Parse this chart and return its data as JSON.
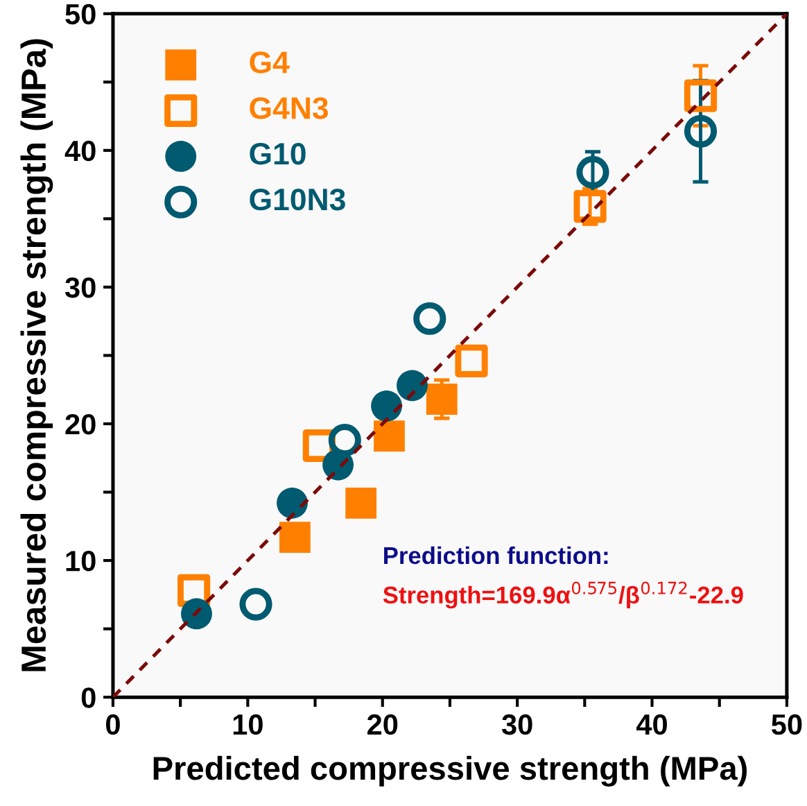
{
  "chart_data": {
    "type": "scatter",
    "xlabel": "Predicted compressive strength (MPa)",
    "ylabel": "Measured compressive strength (MPa)",
    "xlim": [
      0,
      50
    ],
    "ylim": [
      0,
      50
    ],
    "xticks": [
      0,
      {
        "value": 5,
        "label": null
      },
      10,
      {
        "value": 15,
        "label": null
      },
      20,
      {
        "value": 25,
        "label": null
      },
      30,
      {
        "value": 35,
        "label": null
      },
      40,
      {
        "value": 45,
        "label": null
      },
      50
    ],
    "yticks": [
      0,
      {
        "value": 5,
        "label": null
      },
      10,
      {
        "value": 15,
        "label": null
      },
      20,
      {
        "value": 25,
        "label": null
      },
      30,
      {
        "value": 35,
        "label": null
      },
      40,
      {
        "value": 45,
        "label": null
      },
      50
    ],
    "grid": false,
    "legend": "top left",
    "series": [
      {
        "name": "G4",
        "color": "#ff8000",
        "marker": "square",
        "x": [
          13.5,
          18.4,
          20.5,
          24.4
        ],
        "values": [
          11.7,
          14.2,
          19.1,
          21.8
        ],
        "errors": [
          null,
          null,
          null,
          1.4
        ]
      },
      {
        "name": "G4N3",
        "color": "#ff8000",
        "marker": "square",
        "x": [
          6.0,
          15.3,
          26.6,
          35.4,
          43.6
        ],
        "values": [
          7.8,
          18.4,
          24.6,
          35.9,
          44.0
        ],
        "errors": [
          null,
          null,
          null,
          1.3,
          2.2
        ]
      },
      {
        "name": "G10",
        "color": "#005a70",
        "marker": "circle",
        "x": [
          6.2,
          13.3,
          16.7,
          20.3,
          22.2
        ],
        "values": [
          6.1,
          14.2,
          17.0,
          21.3,
          22.8
        ]
      },
      {
        "name": "G10N3",
        "color": "#005a70",
        "marker": "circle",
        "x": [
          10.6,
          17.2,
          23.5,
          35.6,
          43.6
        ],
        "values": [
          6.8,
          18.8,
          27.7,
          38.4,
          41.4
        ],
        "errors": [
          null,
          null,
          null,
          1.5,
          3.7
        ]
      },
      {
        "type": "line",
        "color": "#7b0a0a",
        "line_style": "dashed",
        "marker": "none",
        "x": [
          0,
          50
        ],
        "values": [
          0,
          50
        ]
      }
    ],
    "annotations": [
      "Prediction function:",
      "Strength=169.9α$^{0.575}$/β$^{0.172}$-22.9"
    ]
  }
}
